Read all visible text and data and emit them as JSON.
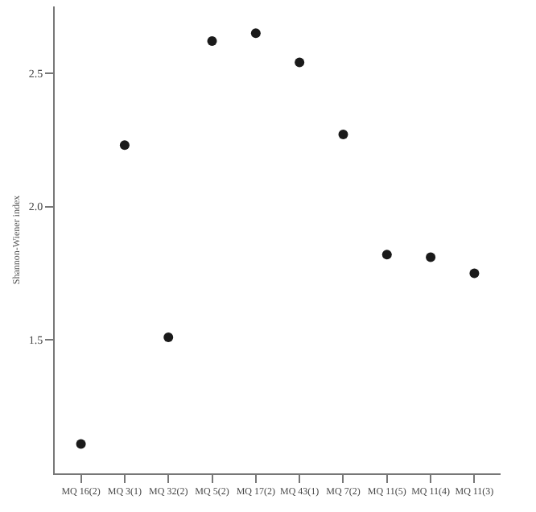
{
  "chart_data": {
    "type": "scatter",
    "ylabel": "Shannon-Wiener index",
    "categories": [
      "MQ 16(2)",
      "MQ 3(1)",
      "MQ 32(2)",
      "MQ 5(2)",
      "MQ 17(2)",
      "MQ 43(1)",
      "MQ 7(2)",
      "MQ 11(5)",
      "MQ 11(4)",
      "MQ 11(3)"
    ],
    "values": [
      1.11,
      2.23,
      1.51,
      2.62,
      2.65,
      2.54,
      2.27,
      1.82,
      1.81,
      1.75
    ],
    "color": "#1a1a1a",
    "marker": "circle",
    "ylim": [
      1.0,
      2.75
    ],
    "yticks": [
      {
        "value": 1.5,
        "label": "1.5"
      },
      {
        "value": 2,
        "label": "2.0"
      },
      {
        "value": 2.5,
        "label": "2.5"
      }
    ],
    "grid": false
  }
}
